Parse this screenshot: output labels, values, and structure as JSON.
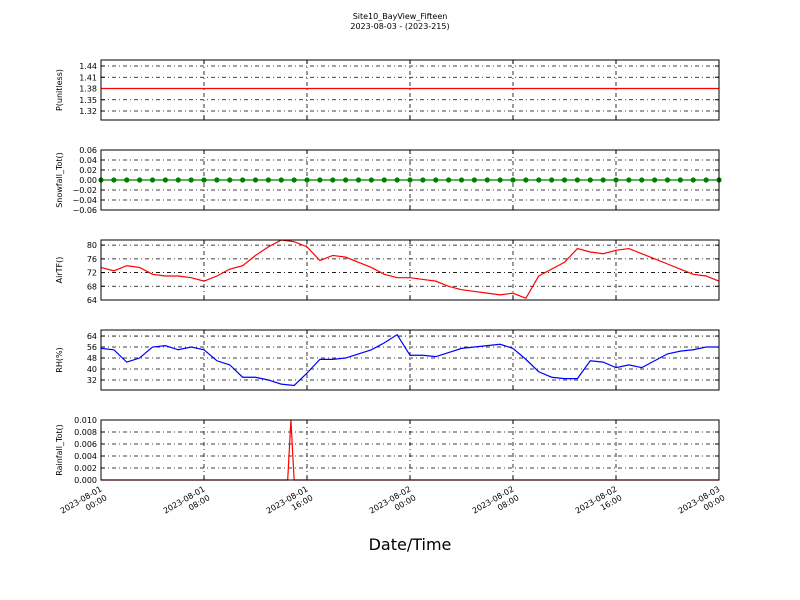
{
  "chart_data": {
    "type": "line",
    "title": "Site10_BayView_Fifteen",
    "subtitle": "2023-08-03 - (2023-215)",
    "xlabel": "Date/Time",
    "xlim": [
      "2023-08-01 00:00",
      "2023-08-03 00:00"
    ],
    "xticks": [
      "2023-08-01 00:00",
      "2023-08-01 08:00",
      "2023-08-01 16:00",
      "2023-08-02 00:00",
      "2023-08-02 08:00",
      "2023-08-02 16:00",
      "2023-08-03 00:00"
    ],
    "grid": true,
    "x": [
      "2023-08-01 00:00",
      "2023-08-01 01:00",
      "2023-08-01 02:00",
      "2023-08-01 03:00",
      "2023-08-01 04:00",
      "2023-08-01 05:00",
      "2023-08-01 06:00",
      "2023-08-01 07:00",
      "2023-08-01 08:00",
      "2023-08-01 09:00",
      "2023-08-01 10:00",
      "2023-08-01 11:00",
      "2023-08-01 12:00",
      "2023-08-01 13:00",
      "2023-08-01 14:00",
      "2023-08-01 15:00",
      "2023-08-01 16:00",
      "2023-08-01 17:00",
      "2023-08-01 18:00",
      "2023-08-01 19:00",
      "2023-08-01 20:00",
      "2023-08-01 21:00",
      "2023-08-01 22:00",
      "2023-08-01 23:00",
      "2023-08-02 00:00",
      "2023-08-02 01:00",
      "2023-08-02 02:00",
      "2023-08-02 03:00",
      "2023-08-02 04:00",
      "2023-08-02 05:00",
      "2023-08-02 06:00",
      "2023-08-02 07:00",
      "2023-08-02 08:00",
      "2023-08-02 09:00",
      "2023-08-02 10:00",
      "2023-08-02 11:00",
      "2023-08-02 12:00",
      "2023-08-02 13:00",
      "2023-08-02 14:00",
      "2023-08-02 15:00",
      "2023-08-02 16:00",
      "2023-08-02 17:00",
      "2023-08-02 18:00",
      "2023-08-02 19:00",
      "2023-08-02 20:00",
      "2023-08-02 21:00",
      "2023-08-02 22:00",
      "2023-08-02 23:00",
      "2023-08-03 00:00"
    ],
    "panels": [
      {
        "ylabel": "P(unitless)",
        "color": "#ff0000",
        "ylim": [
          1.296,
          1.456
        ],
        "yticks": [
          1.32,
          1.35,
          1.38,
          1.41,
          1.44
        ],
        "values": [
          1.38,
          1.38,
          1.38,
          1.38,
          1.38,
          1.38,
          1.38,
          1.38,
          1.38,
          1.38,
          1.38,
          1.38,
          1.38,
          1.38,
          1.38,
          1.38,
          1.38,
          1.38,
          1.38,
          1.38,
          1.38,
          1.38,
          1.38,
          1.38,
          1.38,
          1.38,
          1.38,
          1.38,
          1.38,
          1.38,
          1.38,
          1.38,
          1.38,
          1.38,
          1.38,
          1.38,
          1.38,
          1.38,
          1.38,
          1.38,
          1.38,
          1.38,
          1.38,
          1.38,
          1.38,
          1.38,
          1.38,
          1.38,
          1.38
        ]
      },
      {
        "ylabel": "Snowfall_Tot()",
        "color": "#008000",
        "marker": true,
        "ylim": [
          -0.06,
          0.06
        ],
        "yticks": [
          {
            "value": -0.06,
            "label": "−0.06"
          },
          {
            "value": -0.04,
            "label": "−0.04"
          },
          {
            "value": -0.02,
            "label": "−0.02"
          },
          {
            "value": 0,
            "label": "0.00"
          },
          {
            "value": 0.02,
            "label": "0.02"
          },
          {
            "value": 0.04,
            "label": "0.04"
          },
          {
            "value": 0.06,
            "label": "0.06"
          }
        ],
        "values": [
          0,
          0,
          0,
          0,
          0,
          0,
          0,
          0,
          0,
          0,
          0,
          0,
          0,
          0,
          0,
          0,
          0,
          0,
          0,
          0,
          0,
          0,
          0,
          0,
          0,
          0,
          0,
          0,
          0,
          0,
          0,
          0,
          0,
          0,
          0,
          0,
          0,
          0,
          0,
          0,
          0,
          0,
          0,
          0,
          0,
          0,
          0,
          0,
          0
        ]
      },
      {
        "ylabel": "AirTF()",
        "color": "#ff0000",
        "ylim": [
          64,
          81.5
        ],
        "yticks": [
          64,
          68,
          72,
          76,
          80
        ],
        "values": [
          73.5,
          72.5,
          74,
          73.5,
          71.5,
          71,
          71,
          70.5,
          69.5,
          71,
          73,
          74,
          77,
          79.5,
          81.5,
          81,
          79.5,
          75.5,
          77,
          76.5,
          75,
          73.5,
          71.5,
          70.5,
          70.5,
          70,
          69.5,
          68,
          67,
          66.5,
          66,
          65.5,
          66,
          64.5,
          71,
          73,
          75,
          79,
          78,
          77.5,
          78.5,
          79,
          77.5,
          76,
          74.5,
          73,
          71.5,
          71,
          69.5
        ]
      },
      {
        "ylabel": "RH(%)",
        "color": "#0000ff",
        "ylim": [
          24.7,
          68.4
        ],
        "yticks": [
          32,
          40,
          48,
          56,
          64
        ],
        "values": [
          55,
          54,
          45,
          48,
          56,
          57,
          54,
          56,
          54,
          46,
          43,
          34,
          34,
          32,
          29,
          28,
          37,
          47,
          47,
          48,
          51,
          54,
          59,
          65,
          50,
          50,
          49,
          52,
          55,
          56,
          57,
          58,
          55,
          47,
          38,
          34,
          33,
          33,
          46,
          45,
          41,
          43,
          41,
          46,
          51,
          53,
          54,
          56,
          56
        ]
      },
      {
        "ylabel": "Rainfall_Tot()",
        "color": "#ff0000",
        "ylim": [
          0,
          0.01
        ],
        "yticks": [
          {
            "value": 0,
            "label": "0.000"
          },
          {
            "value": 0.002,
            "label": "0.002"
          },
          {
            "value": 0.004,
            "label": "0.004"
          },
          {
            "value": 0.006,
            "label": "0.006"
          },
          {
            "value": 0.008,
            "label": "0.008"
          },
          {
            "value": 0.01,
            "label": "0.010"
          }
        ],
        "x": [
          "2023-08-01 00:00",
          "2023-08-01 14:30",
          "2023-08-01 14:45",
          "2023-08-01 15:00",
          "2023-08-03 00:00"
        ],
        "values": [
          0,
          0,
          0.01,
          0,
          0
        ]
      }
    ]
  }
}
